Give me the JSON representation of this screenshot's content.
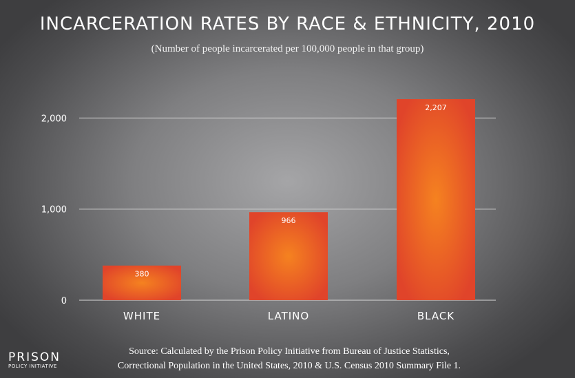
{
  "chart_data": {
    "type": "bar",
    "title": "INCARCERATION RATES BY RACE & ETHNICITY, 2010",
    "subtitle": "(Number of people incarcerated per 100,000 people in that group)",
    "categories": [
      "WHITE",
      "LATINO",
      "BLACK"
    ],
    "values": [
      380,
      966,
      2207
    ],
    "value_labels": [
      "380",
      "966",
      "2,207"
    ],
    "yticks": [
      0,
      1000,
      2000
    ],
    "ytick_labels": [
      "0",
      "1,000",
      "2,000"
    ],
    "ylim": [
      0,
      2207
    ],
    "grid": true,
    "xlabel": "",
    "ylabel": ""
  },
  "source": {
    "line1": "Source: Calculated by the Prison Policy Initiative from Bureau of Justice Statistics,",
    "line2": "Correctional Population in the United States, 2010 & U.S. Census 2010 Summary File 1."
  },
  "logo": {
    "top": "PRISON",
    "bottom": "POLICY INITIATIVE"
  },
  "colors": {
    "bar_center": "#f58220",
    "bar_edge": "#e0442a",
    "grid": "#d8d8d8"
  }
}
